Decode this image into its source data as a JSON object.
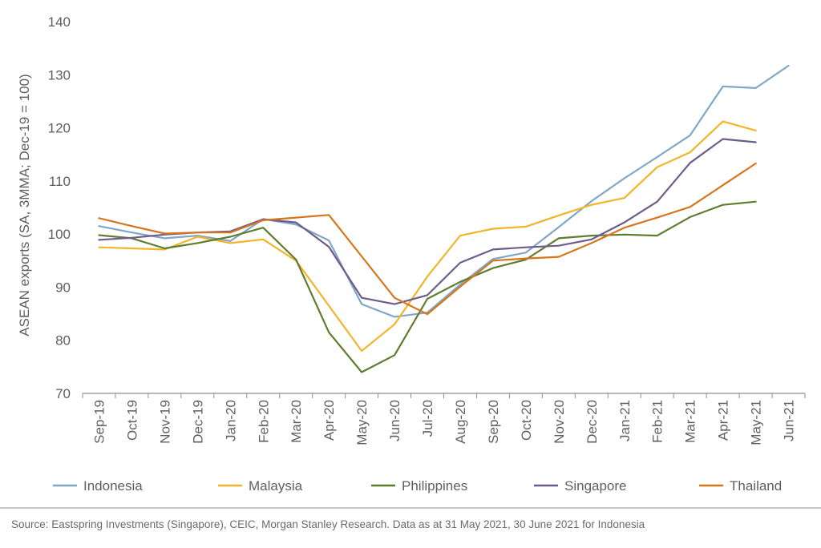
{
  "chart_data": {
    "type": "line",
    "title": "",
    "xlabel": "",
    "ylabel": "ASEAN exports (SA, 3MMA; Dec-19 = 100)",
    "ylim": [
      70,
      140
    ],
    "yticks": [
      70,
      80,
      90,
      100,
      110,
      120,
      130,
      140
    ],
    "grid": false,
    "legend_position": "bottom",
    "categories": [
      "Sep-19",
      "Oct-19",
      "Nov-19",
      "Dec-19",
      "Jan-20",
      "Feb-20",
      "Mar-20",
      "Apr-20",
      "May-20",
      "Jun-20",
      "Jul-20",
      "Aug-20",
      "Sep-20",
      "Oct-20",
      "Nov-20",
      "Dec-20",
      "Jan-21",
      "Feb-21",
      "Mar-21",
      "Apr-21",
      "May-21",
      "Jun-21"
    ],
    "series": [
      {
        "name": "Indonesia",
        "color": "#7fa7c6",
        "values": [
          101.5,
          100.3,
          99.2,
          99.7,
          98.7,
          102.8,
          101.8,
          98.8,
          86.8,
          84.4,
          85.2,
          90.5,
          95.3,
          96.5,
          101.3,
          106.2,
          110.5,
          114.5,
          118.6,
          127.8,
          127.5,
          131.7
        ]
      },
      {
        "name": "Malaysia",
        "color": "#f2b52a",
        "values": [
          97.5,
          97.3,
          97.1,
          99.5,
          98.3,
          99.0,
          95.0,
          86.5,
          78.0,
          83.0,
          92.0,
          99.7,
          101.0,
          101.4,
          103.5,
          105.5,
          106.8,
          112.6,
          115.4,
          121.2,
          119.5,
          null
        ]
      },
      {
        "name": "Philippines",
        "color": "#5e7d2e",
        "values": [
          99.8,
          99.2,
          97.3,
          98.3,
          99.5,
          101.2,
          95.2,
          81.5,
          74.0,
          77.2,
          87.8,
          91.0,
          93.6,
          95.2,
          99.2,
          99.7,
          99.9,
          99.7,
          103.2,
          105.5,
          106.1,
          null
        ]
      },
      {
        "name": "Singapore",
        "color": "#6e5b8c",
        "values": [
          98.9,
          99.3,
          99.9,
          100.3,
          100.5,
          102.8,
          102.2,
          97.6,
          88.0,
          86.8,
          88.5,
          94.6,
          97.1,
          97.5,
          97.8,
          99.0,
          102.2,
          106.1,
          113.4,
          117.9,
          117.3,
          null
        ]
      },
      {
        "name": "Thailand",
        "color": "#d6751c",
        "values": [
          103.0,
          101.5,
          100.1,
          100.3,
          100.3,
          102.6,
          103.1,
          103.6,
          95.8,
          88.0,
          84.9,
          90.1,
          95.0,
          95.4,
          95.7,
          98.3,
          101.2,
          103.1,
          105.1,
          109.2,
          113.3,
          null
        ]
      }
    ]
  },
  "source": "Source: Eastspring Investments (Singapore), CEIC, Morgan Stanley Research. Data as at 31 May 2021, 30 June 2021 for Indonesia"
}
